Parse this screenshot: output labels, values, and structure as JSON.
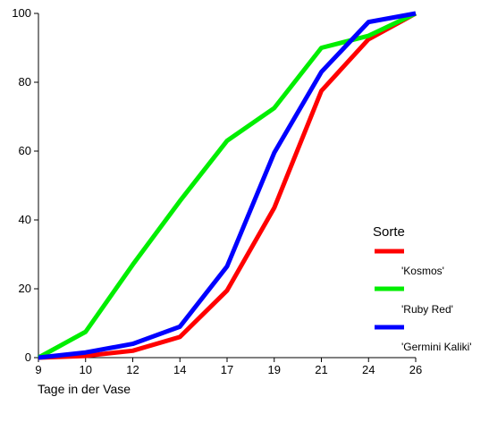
{
  "chart_data": {
    "type": "line",
    "xlabel": "Tage in der Vase",
    "ylabel": "",
    "x": [
      9,
      10,
      12,
      14,
      17,
      19,
      21,
      24,
      26
    ],
    "x_ticks": [
      "9",
      "10",
      "12",
      "14",
      "17",
      "19",
      "21",
      "24",
      "26"
    ],
    "y_ticks": [
      "0",
      "20",
      "40",
      "60",
      "80",
      "100"
    ],
    "ylim": [
      0,
      100
    ],
    "x_scale": "categorical-equal-spacing",
    "grid": false,
    "legend_placement": "right",
    "legend_title": "Sorte",
    "legend_entries": [
      "'Kosmos'",
      "'Ruby Red'",
      "'Germini Kaliki'"
    ],
    "series": [
      {
        "color": "#ff0000",
        "values": [
          0,
          0.5,
          2,
          6,
          19.5,
          43.5,
          77.5,
          92.5,
          100
        ]
      },
      {
        "color": "#00ee00",
        "values": [
          0,
          7.5,
          27,
          45.5,
          63,
          72.5,
          90,
          93.5,
          100
        ]
      },
      {
        "color": "#0000ff",
        "values": [
          0,
          1.5,
          4,
          9,
          26.5,
          59.5,
          83,
          97.5,
          100
        ]
      }
    ]
  }
}
